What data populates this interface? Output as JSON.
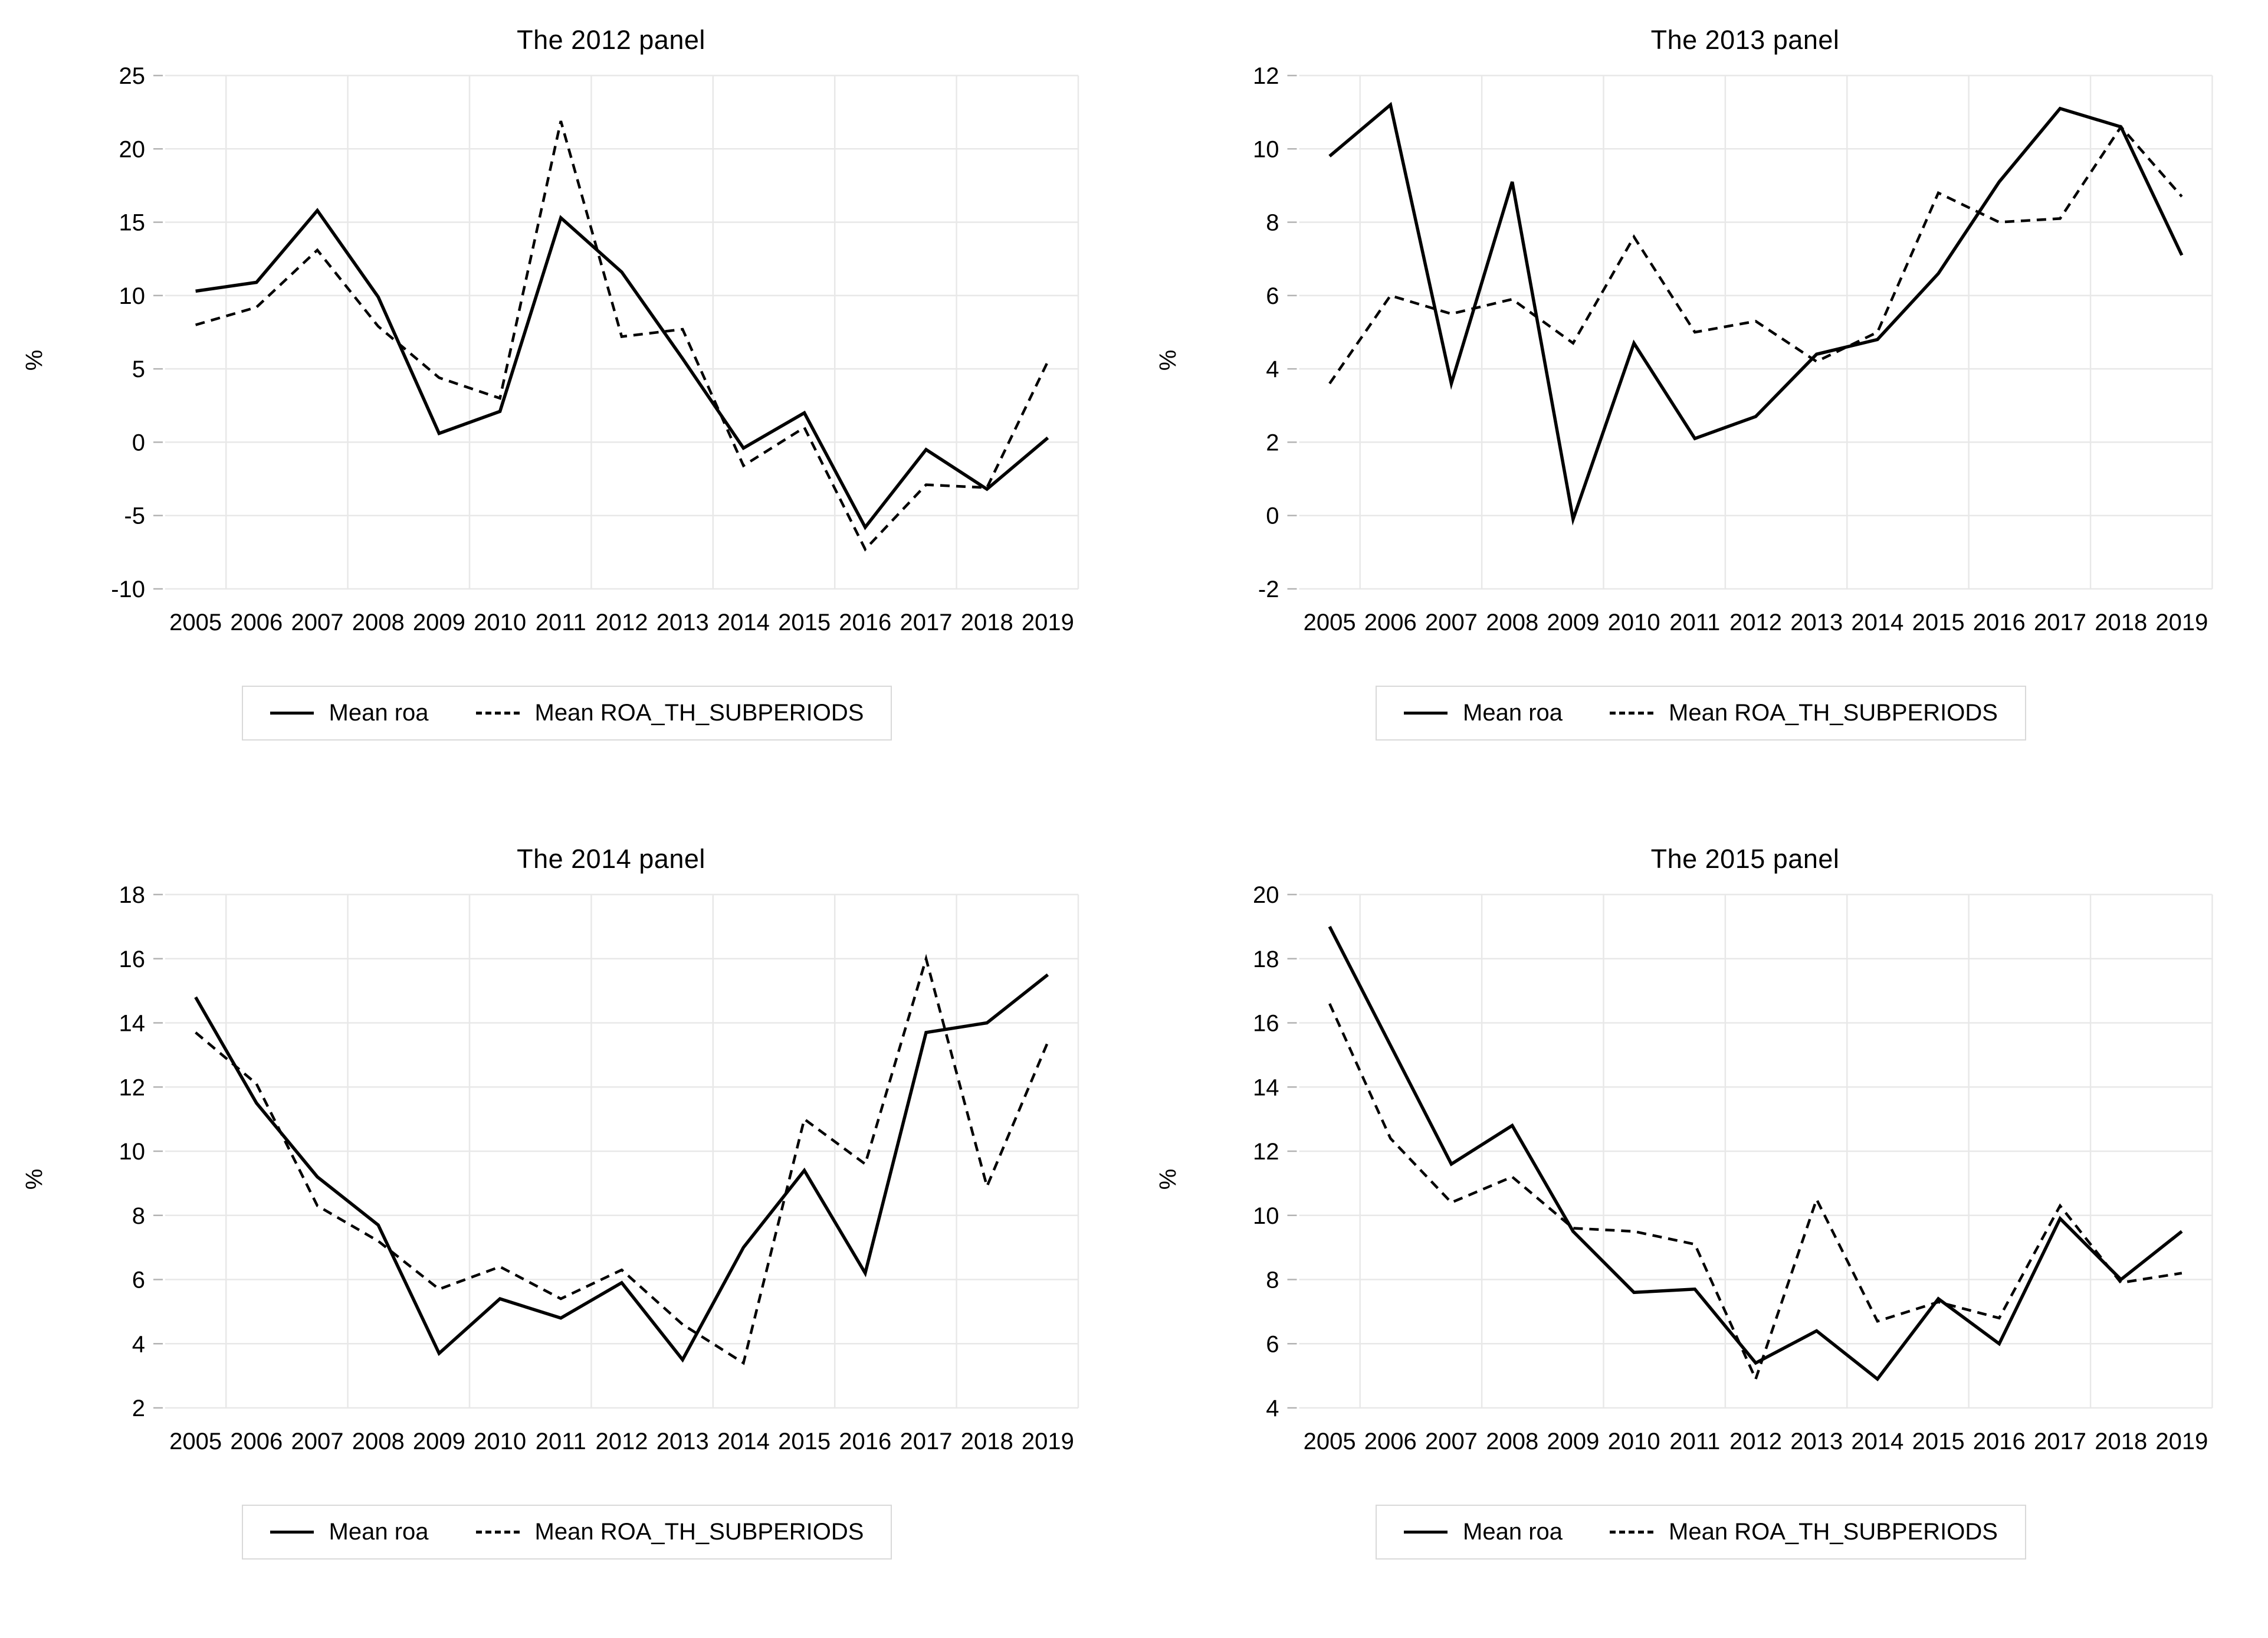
{
  "figure": {
    "ylabel": "%",
    "years": [
      2005,
      2006,
      2007,
      2008,
      2009,
      2010,
      2011,
      2012,
      2013,
      2014,
      2015,
      2016,
      2017,
      2018,
      2019
    ],
    "legend": {
      "solid_label": "Mean roa",
      "dashed_label": "Mean ROA_TH_SUBPERIODS"
    },
    "colors": {
      "line": "#000000",
      "gridline": "#e8e8e8",
      "tick": "#b3b3b3",
      "legend_border": "#d9d9d9",
      "background": "#ffffff",
      "text": "#000000"
    }
  },
  "chart_data": [
    {
      "type": "line",
      "title": "The 2012 panel",
      "ylabel": "%",
      "xlabel": "",
      "x": [
        2005,
        2006,
        2007,
        2008,
        2009,
        2010,
        2011,
        2012,
        2013,
        2014,
        2015,
        2016,
        2017,
        2018,
        2019
      ],
      "ylim": [
        -10,
        25
      ],
      "yticks": [
        -10,
        -5,
        0,
        5,
        10,
        15,
        20,
        25
      ],
      "grid": true,
      "legend_position": "bottom",
      "series": [
        {
          "name": "Mean roa",
          "style": "solid",
          "values": [
            10.3,
            10.9,
            15.8,
            9.9,
            0.6,
            2.1,
            15.3,
            11.6,
            5.7,
            -0.4,
            2.0,
            -5.8,
            -0.5,
            -3.2,
            0.3
          ]
        },
        {
          "name": "Mean ROA_TH_SUBPERIODS",
          "style": "dashed",
          "values": [
            8.0,
            9.2,
            13.1,
            7.9,
            4.4,
            3.0,
            21.9,
            7.2,
            7.7,
            -1.6,
            1.0,
            -7.3,
            -2.9,
            -3.1,
            5.5
          ]
        }
      ]
    },
    {
      "type": "line",
      "title": "The 2013 panel",
      "ylabel": "%",
      "xlabel": "",
      "x": [
        2005,
        2006,
        2007,
        2008,
        2009,
        2010,
        2011,
        2012,
        2013,
        2014,
        2015,
        2016,
        2017,
        2018,
        2019
      ],
      "ylim": [
        -2,
        12
      ],
      "yticks": [
        -2,
        0,
        2,
        4,
        6,
        8,
        10,
        12
      ],
      "grid": true,
      "legend_position": "bottom",
      "series": [
        {
          "name": "Mean roa",
          "style": "solid",
          "values": [
            9.8,
            11.2,
            3.6,
            9.1,
            -0.1,
            4.7,
            2.1,
            2.7,
            4.4,
            4.8,
            6.6,
            9.1,
            11.1,
            10.6,
            7.1
          ]
        },
        {
          "name": "Mean ROA_TH_SUBPERIODS",
          "style": "dashed",
          "values": [
            3.6,
            6.0,
            5.5,
            5.9,
            4.7,
            7.6,
            5.0,
            5.3,
            4.2,
            5.0,
            8.8,
            8.0,
            8.1,
            10.6,
            8.7
          ]
        }
      ]
    },
    {
      "type": "line",
      "title": "The 2014 panel",
      "ylabel": "%",
      "xlabel": "",
      "x": [
        2005,
        2006,
        2007,
        2008,
        2009,
        2010,
        2011,
        2012,
        2013,
        2014,
        2015,
        2016,
        2017,
        2018,
        2019
      ],
      "ylim": [
        2,
        18
      ],
      "yticks": [
        2,
        4,
        6,
        8,
        10,
        12,
        14,
        16,
        18
      ],
      "grid": true,
      "legend_position": "bottom",
      "series": [
        {
          "name": "Mean roa",
          "style": "solid",
          "values": [
            14.8,
            11.5,
            9.2,
            7.7,
            3.7,
            5.4,
            4.8,
            5.9,
            3.5,
            7.0,
            9.4,
            6.2,
            13.7,
            14.0,
            15.5
          ]
        },
        {
          "name": "Mean ROA_TH_SUBPERIODS",
          "style": "dashed",
          "values": [
            13.7,
            12.1,
            8.3,
            7.2,
            5.7,
            6.4,
            5.4,
            6.3,
            4.6,
            3.4,
            11.0,
            9.6,
            16.0,
            8.9,
            13.4
          ]
        }
      ]
    },
    {
      "type": "line",
      "title": "The 2015 panel",
      "ylabel": "%",
      "xlabel": "",
      "x": [
        2005,
        2006,
        2007,
        2008,
        2009,
        2010,
        2011,
        2012,
        2013,
        2014,
        2015,
        2016,
        2017,
        2018,
        2019
      ],
      "ylim": [
        4,
        20
      ],
      "yticks": [
        4,
        6,
        8,
        10,
        12,
        14,
        16,
        18,
        20
      ],
      "grid": true,
      "legend_position": "bottom",
      "series": [
        {
          "name": "Mean roa",
          "style": "solid",
          "values": [
            19.0,
            15.3,
            11.6,
            12.8,
            9.5,
            7.6,
            7.7,
            5.4,
            6.4,
            4.9,
            7.4,
            6.0,
            9.9,
            8.0,
            9.5
          ]
        },
        {
          "name": "Mean ROA_TH_SUBPERIODS",
          "style": "dashed",
          "values": [
            16.6,
            12.4,
            10.4,
            11.2,
            9.6,
            9.5,
            9.1,
            4.9,
            10.5,
            6.7,
            7.3,
            6.8,
            10.3,
            7.9,
            8.2
          ]
        }
      ]
    }
  ]
}
